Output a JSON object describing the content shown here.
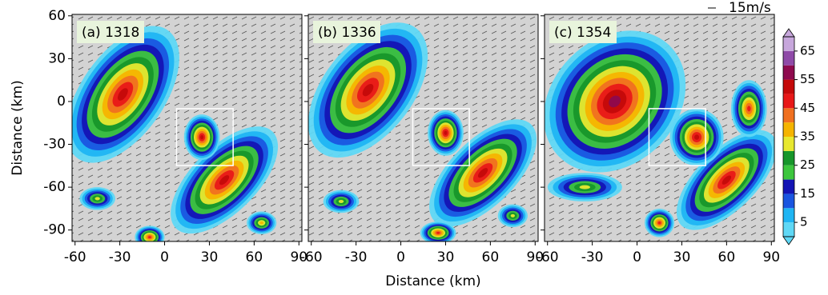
{
  "chart_data": {
    "type": "radar-panels",
    "x_label": "Distance (km)",
    "y_label": "Distance (km)",
    "xlim": [
      -62,
      92
    ],
    "ylim": [
      -98,
      61
    ],
    "xticks": [
      -60,
      -30,
      0,
      30,
      60,
      90
    ],
    "yticks": [
      -90,
      -60,
      -30,
      0,
      30,
      60
    ],
    "panels": [
      {
        "label": "(a) 1318"
      },
      {
        "label": "(b) 1336"
      },
      {
        "label": "(c) 1354"
      }
    ],
    "vector_key": "15m/s",
    "colorbar": {
      "levels": [
        0,
        5,
        10,
        15,
        20,
        25,
        30,
        35,
        40,
        45,
        50,
        55,
        60,
        65,
        70
      ],
      "colors": [
        "#5fd8f6",
        "#1fb5f3",
        "#1a55e0",
        "#1414b4",
        "#3dc63d",
        "#17962a",
        "#e8e830",
        "#f5b400",
        "#f07020",
        "#e81818",
        "#c40a0a",
        "#8e0a4e",
        "#8f4aa8",
        "#c7a7dc"
      ],
      "ticks": [
        5,
        15,
        25,
        35,
        45,
        55,
        65
      ],
      "extend": "both"
    }
  }
}
